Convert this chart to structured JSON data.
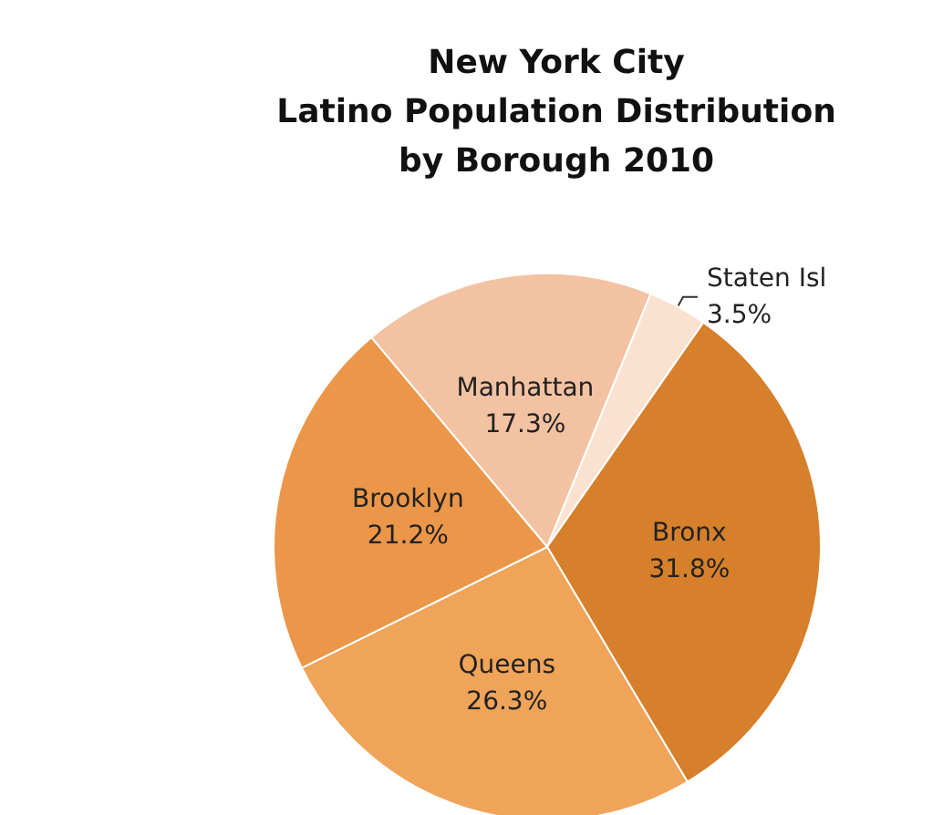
{
  "chart_data": {
    "type": "pie",
    "title": "New York City\nLatino Population Distribution\nby Borough 2010",
    "categories": [
      "Manhattan",
      "Staten Isl",
      "Bronx",
      "Queens",
      "Brooklyn"
    ],
    "values": [
      17.3,
      3.5,
      31.8,
      26.3,
      21.2
    ],
    "value_labels": [
      "17.3%",
      "3.5%",
      "31.8%",
      "26.3%",
      "21.2%"
    ],
    "colors": [
      "#f3c2a2",
      "#fbe2d0",
      "#d6802c",
      "#efa45a",
      "#eb9648"
    ],
    "legend": false
  }
}
